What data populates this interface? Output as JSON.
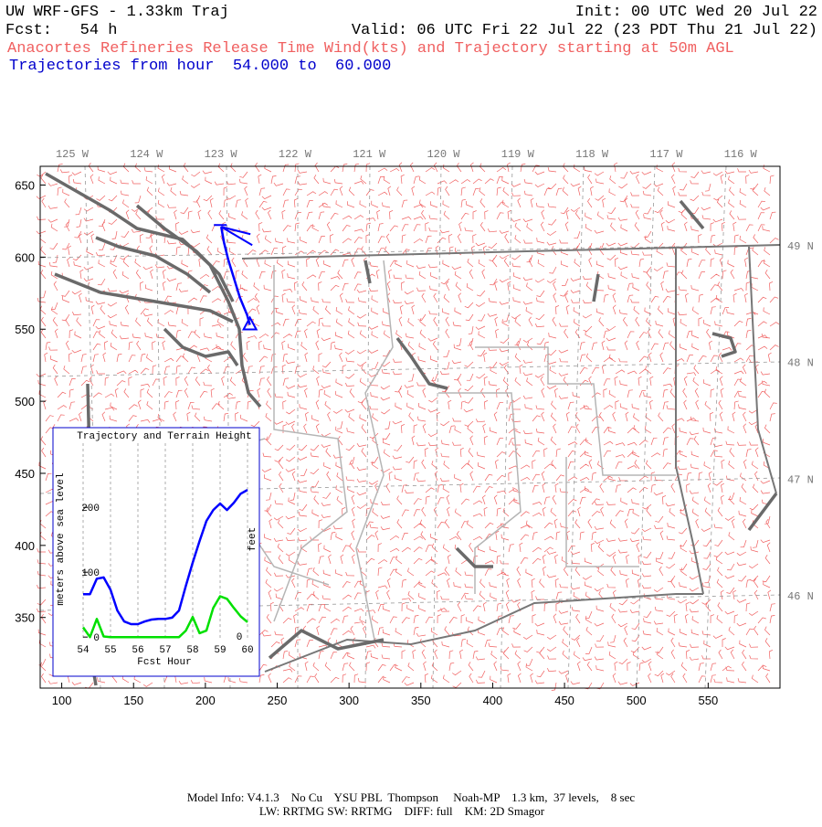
{
  "header": {
    "model": "UW WRF-GFS - 1.33km Traj",
    "init": "Init: 00 UTC Wed 20 Jul 22",
    "forecast": "Fcst:   54 h",
    "valid": "Valid: 06 UTC Fri 22 Jul 22 (23 PDT Thu 21 Jul 22)",
    "subtitle": "Anacortes Refineries Release Time Wind(kts) and Trajectory starting at 50m AGL",
    "trajectory_hours": "Trajectories from hour  54.000 to  60.000"
  },
  "map": {
    "xlim": [
      85,
      600
    ],
    "ylim": [
      301,
      663
    ],
    "xticks": [
      100,
      150,
      200,
      250,
      300,
      350,
      400,
      450,
      500,
      550
    ],
    "yticks": [
      350,
      400,
      450,
      500,
      550,
      600,
      650
    ],
    "longitude_labels": [
      "125 W",
      "124 W",
      "123 W",
      "122 W",
      "121 W",
      "120 W",
      "119 W",
      "118 W",
      "117 W",
      "116 W"
    ],
    "latitude_labels": [
      "49 N",
      "48 N",
      "47 N",
      "46 N"
    ],
    "trajectory": {
      "color": "#0000ff",
      "x": [
        231,
        229,
        224,
        220,
        216,
        213,
        211
      ],
      "y": [
        553,
        560,
        572,
        585,
        598,
        610,
        621
      ]
    }
  },
  "chart_data": {
    "type": "line",
    "title": "Trajectory and Terrain Height",
    "x_label": "Fcst Hour",
    "y_label": "meters above sea level",
    "y2_label": "feet",
    "y2_tick": "0",
    "xlim": [
      54,
      60
    ],
    "ylim": [
      -4,
      299
    ],
    "xticks": [
      54,
      55,
      56,
      57,
      58,
      59,
      60
    ],
    "yticks": [
      0,
      100,
      200
    ],
    "grid": true,
    "x": [
      54,
      54.25,
      54.5,
      54.75,
      55,
      55.25,
      55.5,
      55.75,
      56,
      56.25,
      56.5,
      56.75,
      57,
      57.25,
      57.5,
      57.75,
      58,
      58.25,
      58.5,
      58.75,
      59,
      59.25,
      59.5,
      59.75,
      60
    ],
    "series": [
      {
        "color": "#0000ff",
        "values": [
          66,
          66,
          90,
          92,
          73,
          41,
          24,
          20,
          20,
          24,
          27,
          28,
          28,
          30,
          41,
          79,
          115,
          148,
          179,
          196,
          206,
          196,
          207,
          221,
          227
        ]
      },
      {
        "color": "#00e000",
        "values": [
          15,
          0,
          28,
          1,
          0,
          0,
          0,
          0,
          0,
          0,
          0,
          0,
          0,
          0,
          0,
          10,
          31,
          6,
          10,
          45,
          63,
          59,
          45,
          32,
          23
        ]
      }
    ]
  },
  "footer": {
    "line1": "Model Info: V4.1.3    No Cu    YSU PBL  Thompson     Noah-MP    1.3 km,  37 levels,    8 sec",
    "line2": "LW: RRTMG SW: RRTMG    DIFF: full    KM: 2D Smagor"
  }
}
